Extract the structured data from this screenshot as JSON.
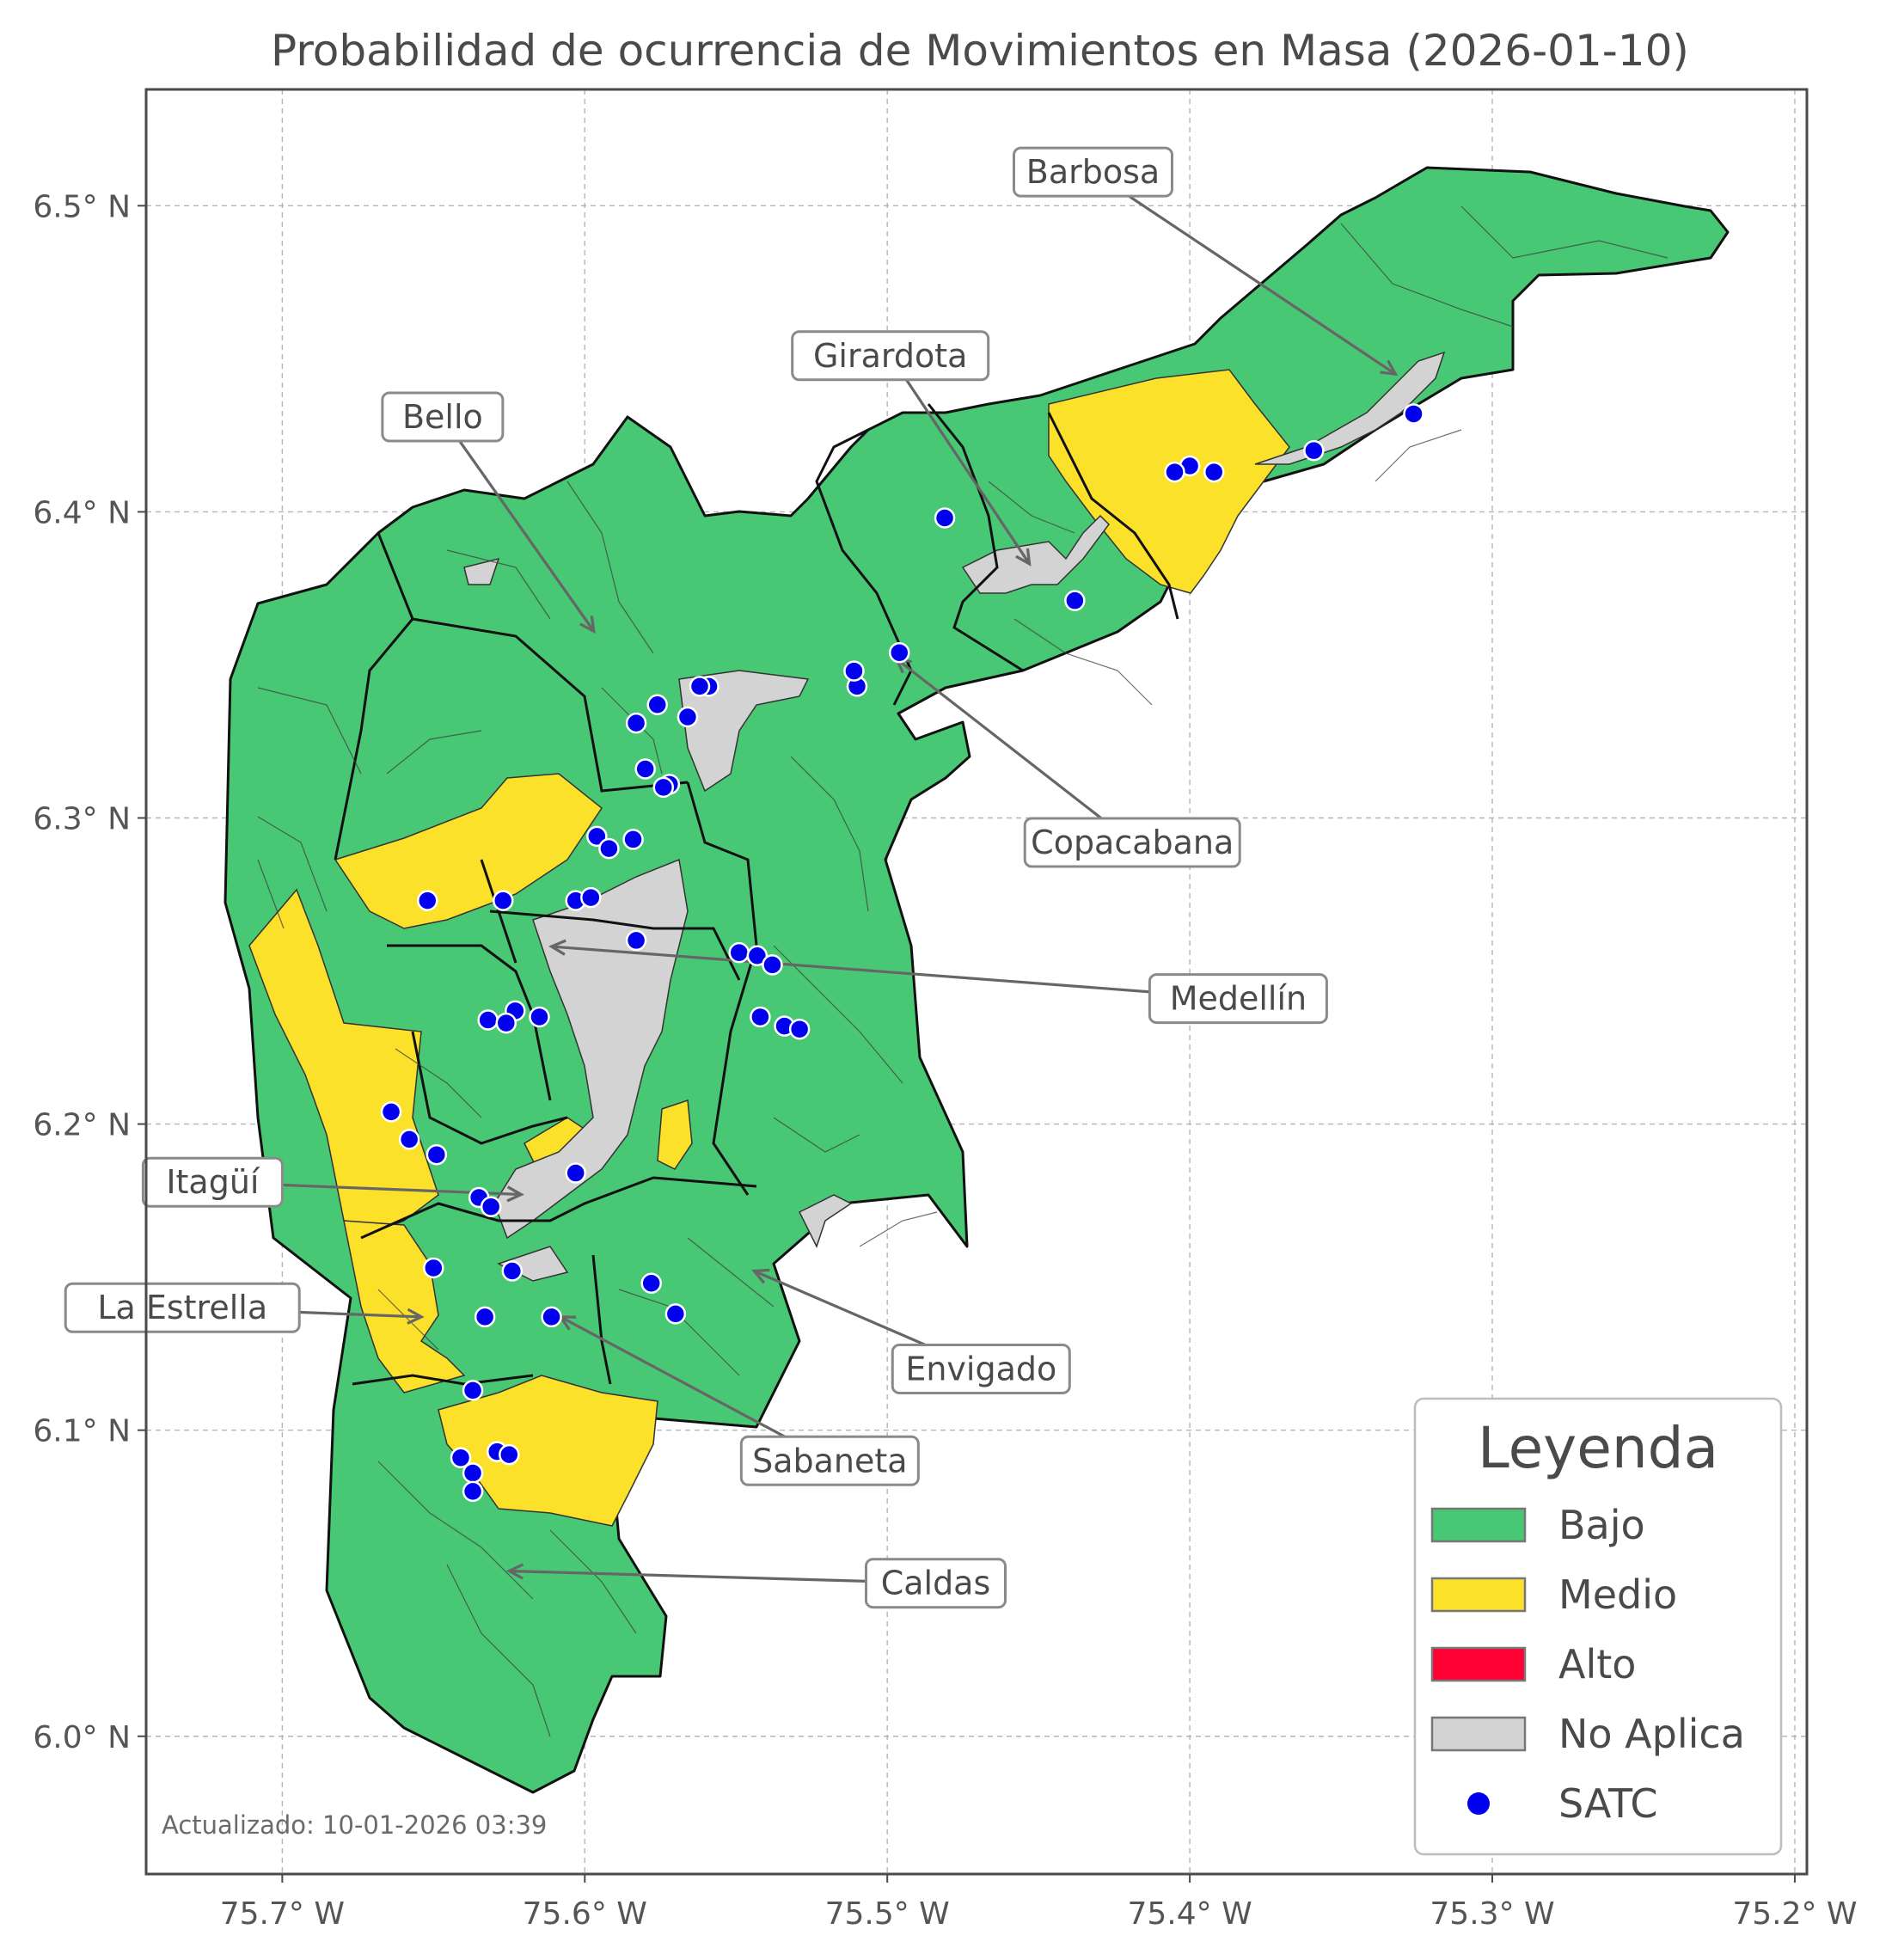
{
  "title": "Probabilidad de ocurrencia de Movimientos en Masa (2026-01-10)",
  "axes": {
    "x_ticks": [
      {
        "lon": -75.7,
        "label": "75.7° W"
      },
      {
        "lon": -75.6,
        "label": "75.6° W"
      },
      {
        "lon": -75.5,
        "label": "75.5° W"
      },
      {
        "lon": -75.4,
        "label": "75.4° W"
      },
      {
        "lon": -75.3,
        "label": "75.3° W"
      },
      {
        "lon": -75.2,
        "label": "75.2° W"
      }
    ],
    "y_ticks": [
      {
        "lat": 6.5,
        "label": "6.5° N"
      },
      {
        "lat": 6.4,
        "label": "6.4° N"
      },
      {
        "lat": 6.3,
        "label": "6.3° N"
      },
      {
        "lat": 6.2,
        "label": "6.2° N"
      },
      {
        "lat": 6.1,
        "label": "6.1° N"
      },
      {
        "lat": 6.0,
        "label": "6.0° N"
      }
    ],
    "lon_range": [
      -75.745,
      -75.196
    ],
    "lat_range": [
      5.955,
      6.538
    ],
    "grid": true
  },
  "colors": {
    "Bajo": "#48c774",
    "Medio": "#fce12a",
    "Alto": "#ff0033",
    "No Aplica": "#d3d3d3",
    "SATC": "#0000ee"
  },
  "municipalities": [
    {
      "name": "Barbosa",
      "label_lon": -75.432,
      "label_lat": 6.511,
      "arrow_lon": -75.332,
      "arrow_lat": 6.445
    },
    {
      "name": "Girardota",
      "label_lon": -75.499,
      "label_lat": 6.451,
      "arrow_lon": -75.453,
      "arrow_lat": 6.383
    },
    {
      "name": "Bello",
      "label_lon": -75.647,
      "label_lat": 6.431,
      "arrow_lon": -75.597,
      "arrow_lat": 6.361
    },
    {
      "name": "Copacabana",
      "label_lon": -75.419,
      "label_lat": 6.292,
      "arrow_lon": -75.497,
      "arrow_lat": 6.352
    },
    {
      "name": "Medellín",
      "label_lon": -75.384,
      "label_lat": 6.241,
      "arrow_lon": -75.611,
      "arrow_lat": 6.258
    },
    {
      "name": "Itagüí",
      "label_lon": -75.723,
      "label_lat": 6.181,
      "arrow_lon": -75.621,
      "arrow_lat": 6.177
    },
    {
      "name": "La Estrella",
      "label_lon": -75.733,
      "label_lat": 6.14,
      "arrow_lon": -75.654,
      "arrow_lat": 6.137
    },
    {
      "name": "Envigado",
      "label_lon": -75.469,
      "label_lat": 6.12,
      "arrow_lon": -75.544,
      "arrow_lat": 6.152
    },
    {
      "name": "Sabaneta",
      "label_lon": -75.519,
      "label_lat": 6.09,
      "arrow_lon": -75.608,
      "arrow_lat": 6.137
    },
    {
      "name": "Caldas",
      "label_lon": -75.484,
      "label_lat": 6.05,
      "arrow_lon": -75.625,
      "arrow_lat": 6.054
    }
  ],
  "satc_stations": [
    [
      -75.326,
      6.432
    ],
    [
      -75.359,
      6.42
    ],
    [
      -75.392,
      6.413
    ],
    [
      -75.4,
      6.415
    ],
    [
      -75.405,
      6.413
    ],
    [
      -75.481,
      6.398
    ],
    [
      -75.438,
      6.371
    ],
    [
      -75.496,
      6.354
    ],
    [
      -75.51,
      6.343
    ],
    [
      -75.511,
      6.348
    ],
    [
      -75.559,
      6.343
    ],
    [
      -75.562,
      6.343
    ],
    [
      -75.566,
      6.333
    ],
    [
      -75.576,
      6.337
    ],
    [
      -75.583,
      6.331
    ],
    [
      -75.58,
      6.316
    ],
    [
      -75.572,
      6.311
    ],
    [
      -75.574,
      6.31
    ],
    [
      -75.596,
      6.294
    ],
    [
      -75.584,
      6.293
    ],
    [
      -75.592,
      6.29
    ],
    [
      -75.652,
      6.273
    ],
    [
      -75.627,
      6.273
    ],
    [
      -75.603,
      6.273
    ],
    [
      -75.598,
      6.274
    ],
    [
      -75.583,
      6.26
    ],
    [
      -75.549,
      6.256
    ],
    [
      -75.543,
      6.255
    ],
    [
      -75.538,
      6.252
    ],
    [
      -75.542,
      6.235
    ],
    [
      -75.534,
      6.232
    ],
    [
      -75.529,
      6.231
    ],
    [
      -75.623,
      6.237
    ],
    [
      -75.632,
      6.234
    ],
    [
      -75.626,
      6.233
    ],
    [
      -75.615,
      6.235
    ],
    [
      -75.664,
      6.204
    ],
    [
      -75.658,
      6.195
    ],
    [
      -75.649,
      6.19
    ],
    [
      -75.603,
      6.184
    ],
    [
      -75.635,
      6.176
    ],
    [
      -75.631,
      6.173
    ],
    [
      -75.65,
      6.153
    ],
    [
      -75.624,
      6.152
    ],
    [
      -75.578,
      6.148
    ],
    [
      -75.57,
      6.138
    ],
    [
      -75.633,
      6.137
    ],
    [
      -75.611,
      6.137
    ],
    [
      -75.637,
      6.113
    ],
    [
      -75.641,
      6.091
    ],
    [
      -75.629,
      6.093
    ],
    [
      -75.625,
      6.092
    ],
    [
      -75.637,
      6.086
    ],
    [
      -75.637,
      6.08
    ]
  ],
  "legend": {
    "title": "Leyenda",
    "items": [
      {
        "label": "Bajo",
        "swatch": "patch"
      },
      {
        "label": "Medio",
        "swatch": "patch"
      },
      {
        "label": "Alto",
        "swatch": "patch"
      },
      {
        "label": "No Aplica",
        "swatch": "patch"
      },
      {
        "label": "SATC",
        "swatch": "dot"
      }
    ]
  },
  "updated_text": "Actualizado: 10-01-2026 03:39"
}
